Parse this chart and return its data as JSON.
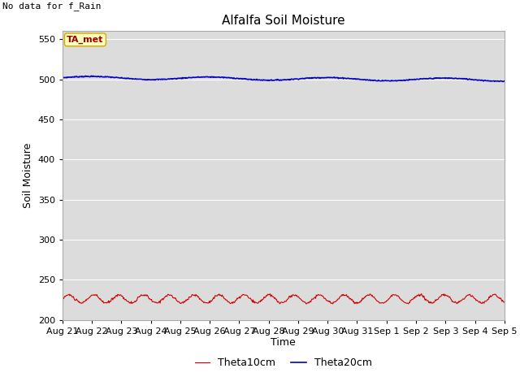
{
  "title": "Alfalfa Soil Moisture",
  "xlabel": "Time",
  "ylabel": "Soil Moisture",
  "no_data_text": "No data for f_Rain",
  "annotation_text": "TA_met",
  "ylim": [
    200,
    560
  ],
  "yticks": [
    200,
    250,
    300,
    350,
    400,
    450,
    500,
    550
  ],
  "background_color": "#dcdcdc",
  "fig_background": "#ffffff",
  "line1_color": "#cc0000",
  "line2_color": "#0000cc",
  "line1_label": "Theta10cm",
  "line2_label": "Theta20cm",
  "num_days": 15,
  "x_tick_labels": [
    "Aug 21",
    "Aug 22",
    "Aug 23",
    "Aug 24",
    "Aug 25",
    "Aug 26",
    "Aug 27",
    "Aug 28",
    "Aug 29",
    "Aug 30",
    "Aug 31",
    "Sep 1",
    "Sep 2",
    "Sep 3",
    "Sep 4",
    "Sep 5"
  ],
  "theta10_base": 226,
  "theta10_amplitude": 5,
  "theta10_period": 0.85,
  "theta20_base": 502,
  "theta20_amplitude": 1.8,
  "theta20_period": 4.0,
  "theta20_trend": -0.18
}
